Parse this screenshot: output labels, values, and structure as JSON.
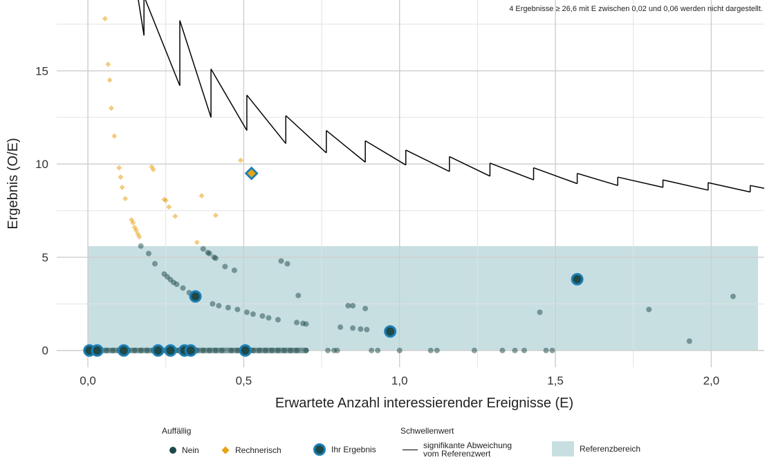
{
  "chart_data": {
    "type": "scatter",
    "note": "4 Ergebnisse ≥ 26,6 mit E zwischen 0,02 und 0,06 werden nicht dargestellt.",
    "xlabel": "Erwartete Anzahl interessierender Ereignisse (E)",
    "ylabel": "Ergebnis (O/E)",
    "xlim": [
      -0.1,
      2.17
    ],
    "ylim": [
      -0.9,
      18.8
    ],
    "x_ticks": [
      0,
      0.5,
      1.0,
      1.5,
      2.0
    ],
    "x_tick_labels": [
      "0,0",
      "0,5",
      "1,0",
      "1,5",
      "2,0"
    ],
    "y_ticks": [
      0,
      5,
      10,
      15
    ],
    "y_tick_labels": [
      "0",
      "5",
      "10",
      "15"
    ],
    "grid": true,
    "reference_range": {
      "x": [
        0,
        2.15
      ],
      "y": [
        0,
        5.6
      ],
      "color": "#c8dfe2"
    },
    "colors": {
      "nein": "#1e4a4a",
      "rechnerisch": "#e8a317",
      "ihr_ring": "#1d7fb5",
      "threshold": "#000000"
    },
    "series": [
      {
        "name": "Nein",
        "points": [
          [
            0.17,
            5.6
          ],
          [
            0.195,
            5.2
          ],
          [
            0.215,
            4.65
          ],
          [
            0.245,
            4.1
          ],
          [
            0.255,
            3.95
          ],
          [
            0.265,
            3.8
          ],
          [
            0.275,
            3.65
          ],
          [
            0.285,
            3.55
          ],
          [
            0.305,
            3.35
          ],
          [
            0.325,
            3.1
          ],
          [
            0.34,
            2.95
          ],
          [
            0.37,
            5.45
          ],
          [
            0.385,
            5.25
          ],
          [
            0.39,
            5.2
          ],
          [
            0.405,
            5.0
          ],
          [
            0.41,
            4.95
          ],
          [
            0.44,
            4.5
          ],
          [
            0.47,
            4.3
          ],
          [
            0.4,
            2.5
          ],
          [
            0.42,
            2.4
          ],
          [
            0.45,
            2.3
          ],
          [
            0.48,
            2.2
          ],
          [
            0.51,
            2.05
          ],
          [
            0.53,
            1.95
          ],
          [
            0.56,
            1.85
          ],
          [
            0.58,
            1.75
          ],
          [
            0.61,
            1.65
          ],
          [
            0.62,
            4.8
          ],
          [
            0.64,
            4.65
          ],
          [
            0.67,
            1.5
          ],
          [
            0.69,
            1.45
          ],
          [
            0.7,
            1.42
          ],
          [
            0.675,
            2.95
          ],
          [
            0.835,
            2.4
          ],
          [
            0.85,
            2.4
          ],
          [
            0.89,
            2.25
          ],
          [
            0.81,
            1.25
          ],
          [
            0.85,
            1.2
          ],
          [
            0.875,
            1.15
          ],
          [
            0.895,
            1.12
          ],
          [
            1.45,
            2.05
          ],
          [
            1.8,
            2.2
          ],
          [
            1.93,
            0.5
          ],
          [
            2.07,
            2.9
          ],
          [
            0.04,
            0
          ],
          [
            0.06,
            0
          ],
          [
            0.08,
            0
          ],
          [
            0.1,
            0
          ],
          [
            0.13,
            0
          ],
          [
            0.15,
            0
          ],
          [
            0.17,
            0
          ],
          [
            0.19,
            0
          ],
          [
            0.21,
            0
          ],
          [
            0.24,
            0
          ],
          [
            0.27,
            0
          ],
          [
            0.29,
            0
          ],
          [
            0.35,
            0
          ],
          [
            0.37,
            0
          ],
          [
            0.39,
            0
          ],
          [
            0.41,
            0
          ],
          [
            0.43,
            0
          ],
          [
            0.46,
            0
          ],
          [
            0.48,
            0
          ],
          [
            0.53,
            0
          ],
          [
            0.55,
            0
          ],
          [
            0.57,
            0
          ],
          [
            0.59,
            0
          ],
          [
            0.61,
            0
          ],
          [
            0.63,
            0
          ],
          [
            0.65,
            0
          ],
          [
            0.67,
            0
          ],
          [
            0.7,
            0
          ],
          [
            0.77,
            0
          ],
          [
            0.79,
            0
          ],
          [
            0.8,
            0
          ],
          [
            0.91,
            0
          ],
          [
            0.93,
            0
          ],
          [
            1.0,
            0
          ],
          [
            1.1,
            0
          ],
          [
            1.12,
            0
          ],
          [
            1.24,
            0
          ],
          [
            1.33,
            0
          ],
          [
            1.37,
            0
          ],
          [
            1.4,
            0
          ],
          [
            1.47,
            0
          ],
          [
            1.49,
            0
          ]
        ]
      },
      {
        "name": "Rechnerisch",
        "points": [
          [
            0.055,
            17.8
          ],
          [
            0.065,
            15.35
          ],
          [
            0.07,
            14.5
          ],
          [
            0.075,
            13.0
          ],
          [
            0.085,
            11.5
          ],
          [
            0.1,
            9.8
          ],
          [
            0.105,
            9.3
          ],
          [
            0.11,
            8.75
          ],
          [
            0.12,
            8.15
          ],
          [
            0.14,
            7.0
          ],
          [
            0.145,
            6.85
          ],
          [
            0.15,
            6.6
          ],
          [
            0.155,
            6.45
          ],
          [
            0.16,
            6.25
          ],
          [
            0.165,
            6.1
          ],
          [
            0.205,
            9.85
          ],
          [
            0.21,
            9.7
          ],
          [
            0.245,
            8.1
          ],
          [
            0.25,
            8.05
          ],
          [
            0.26,
            7.7
          ],
          [
            0.28,
            7.2
          ],
          [
            0.365,
            8.3
          ],
          [
            0.35,
            5.8
          ],
          [
            0.41,
            7.25
          ],
          [
            0.49,
            10.2
          ]
        ]
      },
      {
        "name": "Ihr Ergebnis",
        "points": [
          [
            0.005,
            0
          ],
          [
            0.03,
            0
          ],
          [
            0.115,
            0
          ],
          [
            0.225,
            0
          ],
          [
            0.265,
            0
          ],
          [
            0.31,
            0
          ],
          [
            0.33,
            0
          ],
          [
            0.505,
            0
          ],
          [
            0.345,
            2.9
          ],
          [
            0.97,
            1.02
          ],
          [
            1.57,
            3.82
          ]
        ]
      },
      {
        "name": "Ihr Ergebnis (Rechnerisch)",
        "points": [
          [
            0.525,
            9.5
          ]
        ]
      }
    ],
    "threshold_segments": [
      [
        0.16,
        19.0,
        0.18,
        16.9
      ],
      [
        0.18,
        19.0,
        0.295,
        14.2
      ],
      [
        0.295,
        17.7,
        0.395,
        12.5
      ],
      [
        0.395,
        15.1,
        0.51,
        11.8
      ],
      [
        0.51,
        13.7,
        0.635,
        11.1
      ],
      [
        0.635,
        12.6,
        0.765,
        10.6
      ],
      [
        0.765,
        11.8,
        0.89,
        10.1
      ],
      [
        0.89,
        11.25,
        1.02,
        9.95
      ],
      [
        1.02,
        10.75,
        1.16,
        9.6
      ],
      [
        1.16,
        10.4,
        1.29,
        9.35
      ],
      [
        1.29,
        10.05,
        1.43,
        9.15
      ],
      [
        1.43,
        9.8,
        1.57,
        8.95
      ],
      [
        1.57,
        9.5,
        1.7,
        8.85
      ],
      [
        1.7,
        9.3,
        1.845,
        8.75
      ],
      [
        1.845,
        9.15,
        1.99,
        8.6
      ],
      [
        1.99,
        9.0,
        2.125,
        8.5
      ],
      [
        2.125,
        8.85,
        2.17,
        8.7
      ]
    ]
  },
  "legend": {
    "auffaellig_title": "Auffällig",
    "nein_label": "Nein",
    "rechnerisch_label": "Rechnerisch",
    "ihr_label": "Ihr Ergebnis",
    "schwellenwert_title": "Schwellenwert",
    "threshold_label_1": "signifikante Abweichung",
    "threshold_label_2": "vom Referenzwert",
    "referenz_label": "Referenzbereich"
  }
}
